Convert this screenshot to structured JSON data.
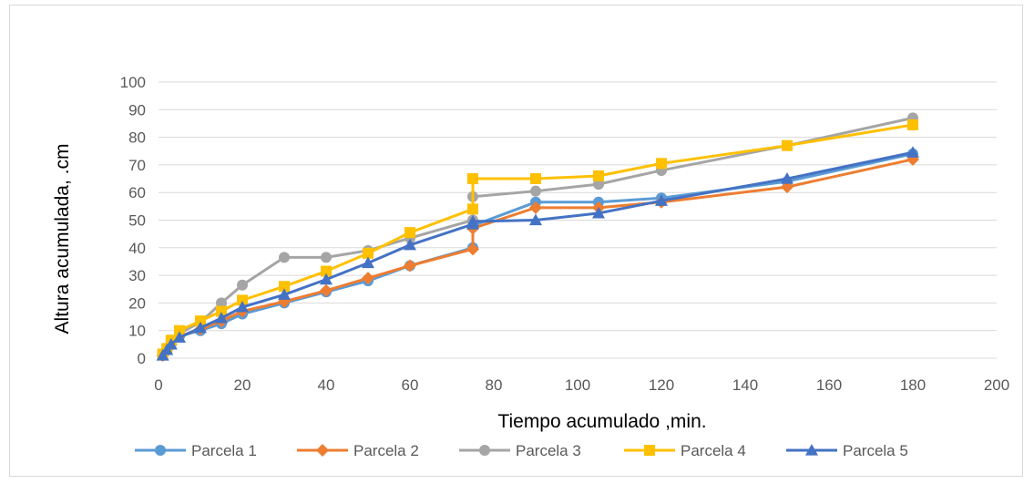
{
  "chart_data": {
    "type": "line",
    "xlabel": "Tiempo acumulado ,min.",
    "ylabel": "Altura acumulada, .cm",
    "xlim": [
      0,
      200
    ],
    "ylim": [
      0,
      100
    ],
    "xticks": [
      "0",
      "20",
      "40",
      "60",
      "80",
      "100",
      "120",
      "140",
      "160",
      "180",
      "200"
    ],
    "yticks": [
      "0",
      "10",
      "20",
      "30",
      "40",
      "50",
      "60",
      "70",
      "80",
      "90",
      "100"
    ],
    "grid": "horizontal",
    "legend_position": "bottom",
    "series": [
      {
        "name": "Parcela 1",
        "color": "#5b9bd5",
        "marker": "circle",
        "x": [
          1,
          2,
          3,
          5,
          10,
          15,
          20,
          30,
          40,
          50,
          60,
          75,
          75,
          90,
          105,
          120,
          150,
          180
        ],
        "y": [
          1,
          3,
          5,
          8,
          10,
          12.5,
          16,
          20,
          24,
          28,
          33.5,
          40,
          48,
          56.5,
          56.5,
          58,
          64,
          74
        ]
      },
      {
        "name": "Parcela 2",
        "color": "#ed7d31",
        "marker": "diamond",
        "x": [
          1,
          2,
          3,
          5,
          10,
          15,
          20,
          30,
          40,
          50,
          60,
          75,
          75,
          90,
          105,
          120,
          150,
          180
        ],
        "y": [
          1,
          3,
          5,
          8,
          10.5,
          13.5,
          17,
          20.5,
          24.5,
          29,
          33.5,
          39.5,
          47,
          54.5,
          54.5,
          56.5,
          62,
          72
        ]
      },
      {
        "name": "Parcela 3",
        "color": "#a5a5a5",
        "marker": "circle",
        "x": [
          1,
          2,
          3,
          5,
          10,
          15,
          20,
          30,
          40,
          50,
          60,
          75,
          75,
          90,
          105,
          120,
          150,
          180
        ],
        "y": [
          1.5,
          3.5,
          6.5,
          9,
          13,
          20,
          26.5,
          36.5,
          36.5,
          39,
          43.5,
          50,
          58.5,
          60.5,
          63,
          68,
          77,
          87
        ]
      },
      {
        "name": "Parcela 4",
        "color": "#ffc000",
        "marker": "square",
        "x": [
          1,
          2,
          3,
          5,
          10,
          15,
          20,
          30,
          40,
          50,
          60,
          75,
          75,
          90,
          105,
          120,
          150,
          180
        ],
        "y": [
          1.5,
          3.5,
          6.5,
          10,
          13.5,
          17,
          21,
          26,
          31.5,
          38,
          45.5,
          54,
          65,
          65,
          66,
          70.5,
          77,
          84.5
        ]
      },
      {
        "name": "Parcela 5",
        "color": "#4472c4",
        "marker": "triangle",
        "x": [
          1,
          2,
          3,
          5,
          10,
          15,
          20,
          30,
          40,
          50,
          60,
          75,
          75,
          90,
          105,
          120,
          150,
          180
        ],
        "y": [
          1,
          3,
          5,
          7.5,
          11,
          14.5,
          18.5,
          23,
          28.5,
          34.5,
          41,
          48.5,
          49.5,
          50,
          52.5,
          57,
          65,
          74.5
        ]
      }
    ]
  }
}
